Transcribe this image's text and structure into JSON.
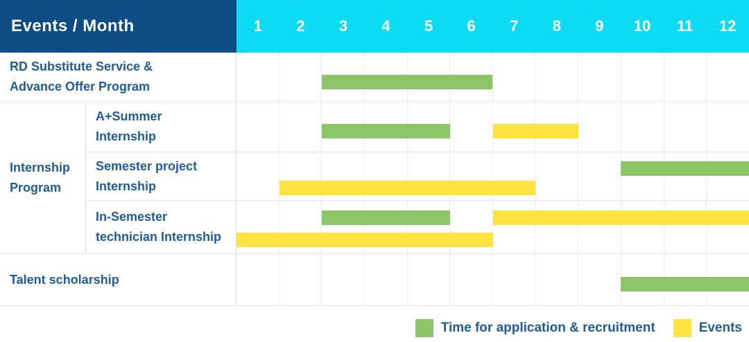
{
  "header": {
    "title": "Events / Month"
  },
  "months": [
    "1",
    "2",
    "3",
    "4",
    "5",
    "6",
    "7",
    "8",
    "9",
    "10",
    "11",
    "12"
  ],
  "colors": {
    "header_bg": "#0f4d87",
    "month_header_bg": "#0cdcf2",
    "label_text": "#1e5c9c",
    "application_green": "#8bc566",
    "events_yellow": "#fee343",
    "grid_line": "#e4e4e4"
  },
  "legend": {
    "application": {
      "label": "Time for application & recruitment",
      "color": "#8bc566"
    },
    "events": {
      "label": "Events",
      "color": "#fee343"
    }
  },
  "chart_data": {
    "type": "gantt",
    "x_axis": {
      "label": "Month",
      "ticks": [
        1,
        2,
        3,
        4,
        5,
        6,
        7,
        8,
        9,
        10,
        11,
        12
      ]
    },
    "series": [
      {
        "key": "application",
        "name": "Time for application & recruitment",
        "color": "#8bc566"
      },
      {
        "key": "events",
        "name": "Events",
        "color": "#fee343"
      }
    ],
    "rows": [
      {
        "group": "",
        "label_lines": [
          "RD Substitute Service &",
          "Advance Offer Program"
        ],
        "bars": [
          {
            "series": "application",
            "start_month": 3,
            "end_month": 6,
            "lane": "center"
          }
        ]
      },
      {
        "group": "Internship Program",
        "group_lines": [
          "Internship",
          "Program"
        ],
        "label_lines": [
          "A+Summer",
          "Internship"
        ],
        "bars": [
          {
            "series": "application",
            "start_month": 3,
            "end_month": 5,
            "lane": "center"
          },
          {
            "series": "events",
            "start_month": 7,
            "end_month": 8,
            "lane": "center"
          }
        ]
      },
      {
        "group": "Internship Program",
        "label_lines": [
          "Semester project",
          "Internship"
        ],
        "bars": [
          {
            "series": "application",
            "start_month": 10,
            "end_month": 12,
            "lane": "top"
          },
          {
            "series": "events",
            "start_month": 2,
            "end_month": 7,
            "lane": "bottom"
          }
        ]
      },
      {
        "group": "Internship Program",
        "label_lines": [
          "In-Semester",
          "technician Internship"
        ],
        "bars": [
          {
            "series": "application",
            "start_month": 3,
            "end_month": 5,
            "lane": "top"
          },
          {
            "series": "events",
            "start_month": 7,
            "end_month": 12,
            "lane": "top"
          },
          {
            "series": "events",
            "start_month": 1,
            "end_month": 6,
            "lane": "bottom"
          }
        ]
      },
      {
        "group": "",
        "label_lines": [
          "Talent scholarship"
        ],
        "bars": [
          {
            "series": "application",
            "start_month": 10,
            "end_month": 12,
            "lane": "center"
          }
        ]
      }
    ]
  }
}
